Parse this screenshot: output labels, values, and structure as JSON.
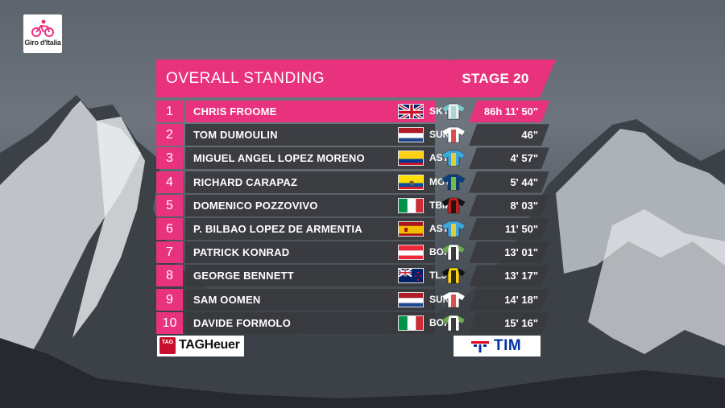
{
  "broadcast": {
    "logo_text": "Giro d'Italia",
    "title": "OVERALL STANDING",
    "stage": "STAGE 20"
  },
  "colors": {
    "accent": "#e8327e",
    "row_bg": "#383a3e"
  },
  "standings": [
    {
      "rank": "1",
      "name": "CHRIS FROOME",
      "country": "GBR",
      "flag": "uk",
      "team": "SKY",
      "jersey": "sky",
      "time": "86h 11' 50\""
    },
    {
      "rank": "2",
      "name": "TOM DUMOULIN",
      "country": "NED",
      "flag": "ned",
      "team": "SUN",
      "jersey": "sunweb",
      "time": "46\""
    },
    {
      "rank": "3",
      "name": "MIGUEL ANGEL LOPEZ MORENO",
      "country": "COL",
      "flag": "col",
      "team": "AST",
      "jersey": "astana",
      "time": "4' 57\""
    },
    {
      "rank": "4",
      "name": "RICHARD CARAPAZ",
      "country": "ECU",
      "flag": "ecu",
      "team": "MOV",
      "jersey": "movistar",
      "time": "5' 44\""
    },
    {
      "rank": "5",
      "name": "DOMENICO POZZOVIVO",
      "country": "ITA",
      "flag": "ita",
      "team": "TBM",
      "jersey": "bahrain",
      "time": "8' 03\""
    },
    {
      "rank": "6",
      "name": "P. BILBAO LOPEZ DE ARMENTIA",
      "country": "ESP",
      "flag": "esp",
      "team": "AST",
      "jersey": "astana",
      "time": "11' 50\""
    },
    {
      "rank": "7",
      "name": "PATRICK KONRAD",
      "country": "AUT",
      "flag": "aut",
      "team": "BOH",
      "jersey": "bora",
      "time": "13' 01\""
    },
    {
      "rank": "8",
      "name": "GEORGE BENNETT",
      "country": "NZL",
      "flag": "nzl",
      "team": "TLJ",
      "jersey": "lottonl",
      "time": "13' 17\""
    },
    {
      "rank": "9",
      "name": "SAM OOMEN",
      "country": "NED",
      "flag": "ned",
      "team": "SUN",
      "jersey": "sunweb",
      "time": "14' 18\""
    },
    {
      "rank": "10",
      "name": "DAVIDE FORMOLO",
      "country": "ITA",
      "flag": "ita",
      "team": "BOH",
      "jersey": "bora",
      "time": "15' 16\""
    }
  ],
  "sponsors": {
    "left": "TAGHeuer",
    "left_mark": "TAG",
    "right": "TIM"
  }
}
